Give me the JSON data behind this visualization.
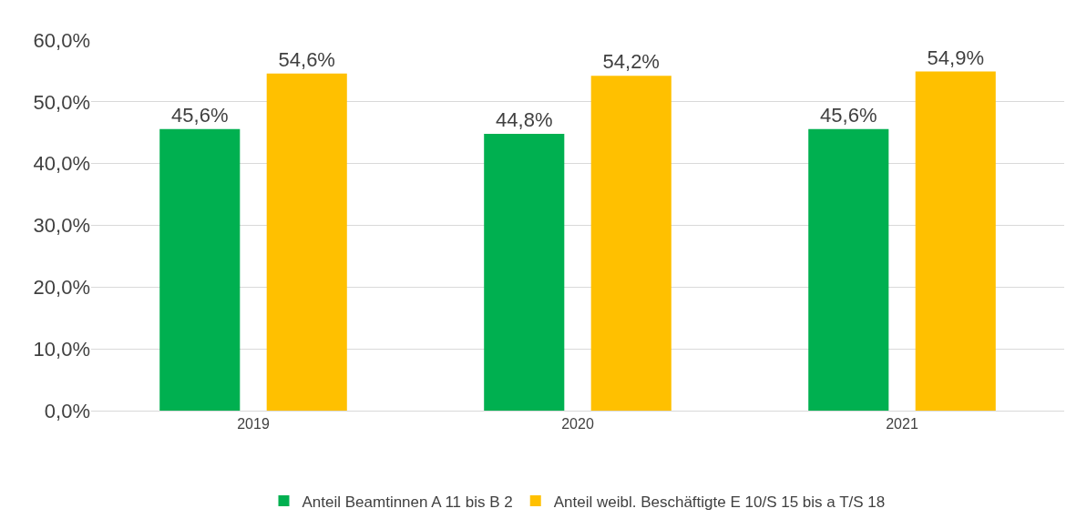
{
  "chart_data": {
    "type": "bar",
    "categories": [
      "2019",
      "2020",
      "2021"
    ],
    "series": [
      {
        "name": "Anteil Beamtinnen A 11 bis B 2",
        "color": "#00b050",
        "values": [
          45.6,
          44.8,
          45.6
        ],
        "value_labels": [
          "45,6%",
          "44,8%",
          "45,6%"
        ]
      },
      {
        "name": "Anteil weibl. Beschäftigte E 10/S 15 bis a T/S 18",
        "color": "#ffc000",
        "values": [
          54.6,
          54.2,
          54.9
        ],
        "value_labels": [
          "54,6%",
          "54,2%",
          "54,9%"
        ]
      }
    ],
    "ylim": [
      0,
      60
    ],
    "yticks": [
      {
        "value": 0,
        "label": "0,0%"
      },
      {
        "value": 10,
        "label": "10,0%"
      },
      {
        "value": 20,
        "label": "20,0%"
      },
      {
        "value": 30,
        "label": "30,0%"
      },
      {
        "value": 40,
        "label": "40,0%"
      },
      {
        "value": 50,
        "label": "50,0%"
      },
      {
        "value": 60,
        "label": "60,0%"
      }
    ],
    "grid": "y",
    "legend": "bottom"
  }
}
